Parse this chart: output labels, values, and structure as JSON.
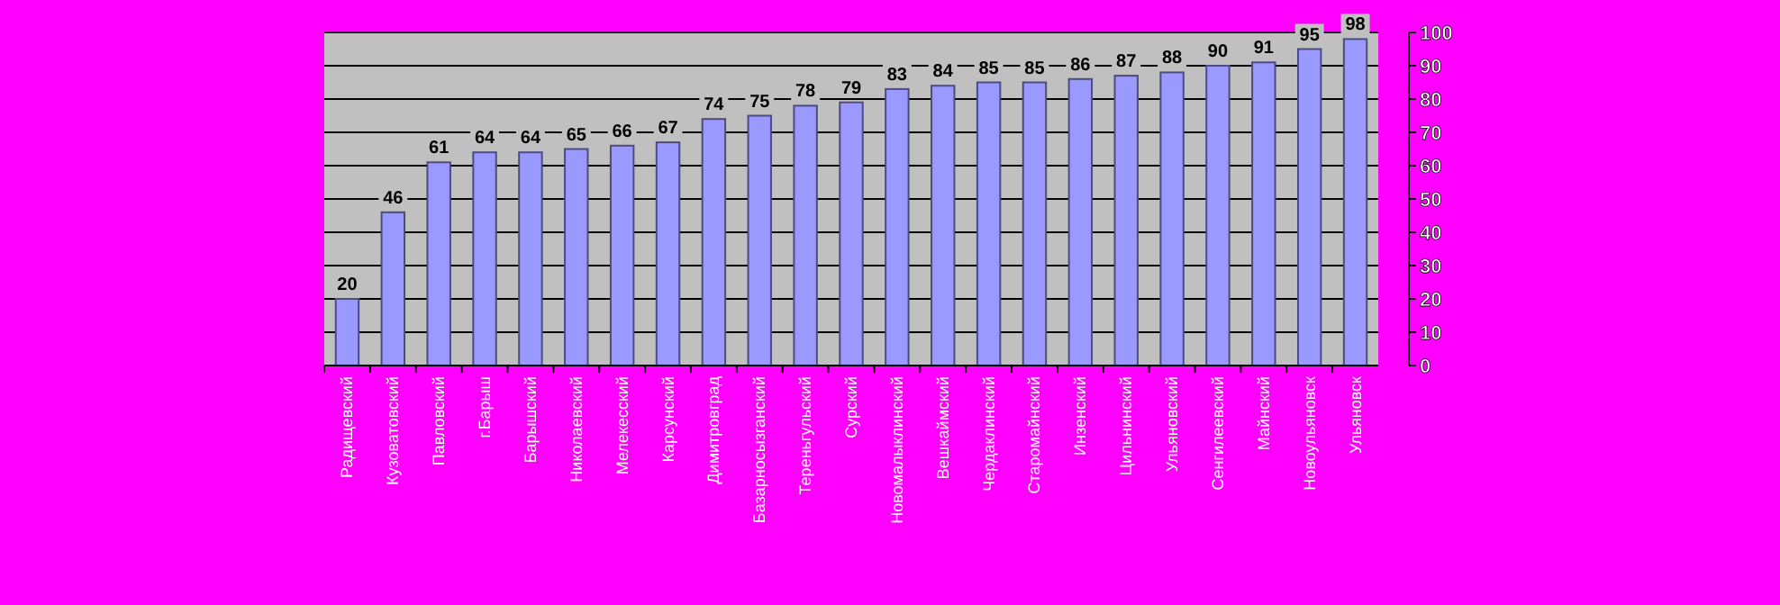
{
  "chart_data": {
    "type": "bar",
    "categories": [
      "Радищевский",
      "Кузоватовский",
      "Павловский",
      "г.Барыш",
      "Барышский",
      "Николаевский",
      "Мелекесский",
      "Карсунский",
      "Димитровград",
      "Базарносызганский",
      "Тереньгульский",
      "Сурский",
      "Новомалыклинский",
      "Вешкаймский",
      "Чердаклинский",
      "Старомайнский",
      "Инзенский",
      "Цильнинский",
      "Ульяновский",
      "Сенгилеевский",
      "Майнский",
      "Новоульяновск",
      "Ульяновск"
    ],
    "values": [
      20,
      46,
      61,
      64,
      64,
      65,
      66,
      67,
      74,
      75,
      78,
      79,
      83,
      84,
      85,
      85,
      86,
      87,
      88,
      90,
      91,
      95,
      98
    ],
    "color": "#9999ff",
    "ylim": [
      0,
      100
    ],
    "yticks": [
      0,
      10,
      20,
      30,
      40,
      50,
      60,
      70,
      80,
      90,
      100
    ],
    "grid": "y",
    "data_labels": true
  }
}
